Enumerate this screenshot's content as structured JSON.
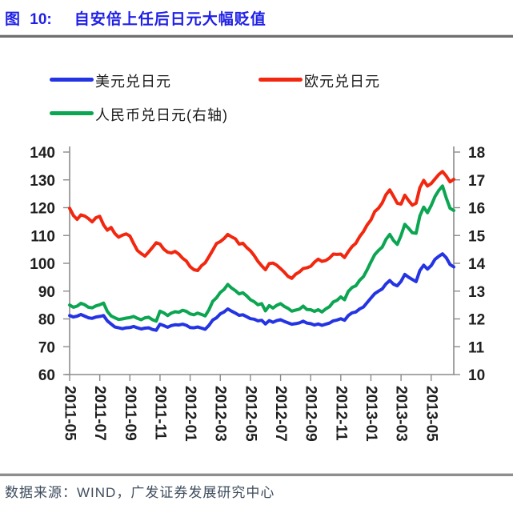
{
  "header": {
    "figure_label": "图 10:",
    "title": "自安倍上任后日元大幅贬值"
  },
  "footer": {
    "source_text": "数据来源：WIND，广发证券发展研究中心"
  },
  "chart_data": {
    "type": "line",
    "title": "自安倍上任后日元大幅贬值",
    "legend_position": "top",
    "grid": false,
    "left_axis": {
      "min": 60,
      "max": 140,
      "ticks": [
        140,
        130,
        120,
        110,
        100,
        90,
        80,
        70,
        60
      ]
    },
    "right_axis": {
      "min": 10,
      "max": 18,
      "ticks": [
        18,
        17,
        16,
        15,
        14,
        13,
        12,
        11,
        10
      ]
    },
    "x_ticks": [
      "2011-05",
      "2011-07",
      "2011-09",
      "2011-11",
      "2012-01",
      "2012-03",
      "2012-05",
      "2012-07",
      "2012-09",
      "2012-11",
      "2013-01",
      "2013-03",
      "2013-05"
    ],
    "x_tick_point_indices": [
      0,
      8,
      16,
      24,
      32,
      40,
      48,
      56,
      64,
      72,
      80,
      88,
      96
    ],
    "series": [
      {
        "name": "美元兑日元",
        "axis": "left",
        "color": "#2434e3",
        "values": [
          81.2,
          80.7,
          81.0,
          81.6,
          81.0,
          80.4,
          80.2,
          80.7,
          80.9,
          81.2,
          79.3,
          78.2,
          77.1,
          76.8,
          76.5,
          76.8,
          76.9,
          77.3,
          76.8,
          76.4,
          76.7,
          76.8,
          76.2,
          75.9,
          78.1,
          77.6,
          77.0,
          77.6,
          77.9,
          77.8,
          78.1,
          77.7,
          76.9,
          76.8,
          77.1,
          76.7,
          76.3,
          77.7,
          79.6,
          80.4,
          81.8,
          82.5,
          83.6,
          82.8,
          82.1,
          81.3,
          81.5,
          80.8,
          80.1,
          79.9,
          79.3,
          79.5,
          78.2,
          79.4,
          78.8,
          79.4,
          79.7,
          79.1,
          78.6,
          78.1,
          78.3,
          78.6,
          79.2,
          78.5,
          78.3,
          77.8,
          78.2,
          77.7,
          78.1,
          78.5,
          79.3,
          79.6,
          80.1,
          79.5,
          81.2,
          82.2,
          82.5,
          83.6,
          84.3,
          85.9,
          87.5,
          89.1,
          90.0,
          90.8,
          92.6,
          93.8,
          92.5,
          91.9,
          93.5,
          96.0,
          95.0,
          94.2,
          93.4,
          97.4,
          99.3,
          97.9,
          99.2,
          101.4,
          102.5,
          103.4,
          102.0,
          99.6,
          98.7
        ]
      },
      {
        "name": "欧元兑日元",
        "axis": "left",
        "color": "#f2270f",
        "values": [
          119.8,
          117.2,
          115.8,
          117.4,
          117.0,
          116.1,
          114.9,
          116.4,
          116.9,
          113.8,
          111.9,
          112.9,
          110.7,
          109.4,
          110.1,
          110.6,
          109.8,
          107.1,
          104.6,
          103.5,
          102.6,
          104.1,
          105.7,
          107.4,
          106.9,
          105.1,
          104.0,
          103.7,
          104.3,
          103.3,
          101.8,
          100.8,
          98.8,
          97.7,
          97.4,
          99.1,
          100.2,
          102.4,
          104.7,
          107.1,
          107.8,
          108.9,
          110.4,
          109.5,
          108.8,
          106.9,
          107.2,
          105.7,
          104.5,
          102.8,
          100.7,
          99.1,
          97.7,
          99.9,
          100.1,
          99.3,
          98.1,
          96.8,
          95.3,
          94.6,
          96.1,
          96.9,
          98.1,
          98.4,
          98.9,
          100.4,
          101.5,
          100.7,
          101.0,
          101.9,
          103.3,
          103.2,
          103.3,
          102.1,
          104.2,
          106.0,
          107.2,
          109.6,
          111.4,
          113.8,
          115.6,
          118.6,
          119.8,
          121.7,
          124.7,
          126.4,
          124.1,
          121.6,
          121.3,
          124.5,
          122.6,
          120.9,
          121.6,
          127.2,
          129.8,
          127.8,
          128.7,
          130.3,
          131.9,
          133.0,
          131.4,
          129.3,
          130.2
        ]
      },
      {
        "name": "人民币兑日元(右轴)",
        "axis": "right",
        "color": "#0ca551",
        "values": [
          12.5,
          12.42,
          12.46,
          12.56,
          12.51,
          12.42,
          12.4,
          12.47,
          12.51,
          12.57,
          12.27,
          12.11,
          12.04,
          11.98,
          12.0,
          12.03,
          12.05,
          12.09,
          12.02,
          11.97,
          12.04,
          12.06,
          11.97,
          11.92,
          12.28,
          12.22,
          12.12,
          12.21,
          12.26,
          12.24,
          12.31,
          12.27,
          12.18,
          12.15,
          12.21,
          12.16,
          12.11,
          12.33,
          12.63,
          12.76,
          12.95,
          13.06,
          13.24,
          13.11,
          13.02,
          12.9,
          12.94,
          12.83,
          12.69,
          12.62,
          12.51,
          12.55,
          12.29,
          12.48,
          12.39,
          12.49,
          12.55,
          12.45,
          12.38,
          12.28,
          12.32,
          12.35,
          12.46,
          12.34,
          12.33,
          12.27,
          12.33,
          12.25,
          12.36,
          12.44,
          12.61,
          12.67,
          12.79,
          12.69,
          12.99,
          13.13,
          13.19,
          13.39,
          13.52,
          13.77,
          14.05,
          14.31,
          14.46,
          14.58,
          14.86,
          15.04,
          14.82,
          14.68,
          15.0,
          15.4,
          15.26,
          15.1,
          15.08,
          15.7,
          16.02,
          15.82,
          16.08,
          16.4,
          16.62,
          16.78,
          16.35,
          15.98,
          15.9
        ]
      }
    ]
  }
}
